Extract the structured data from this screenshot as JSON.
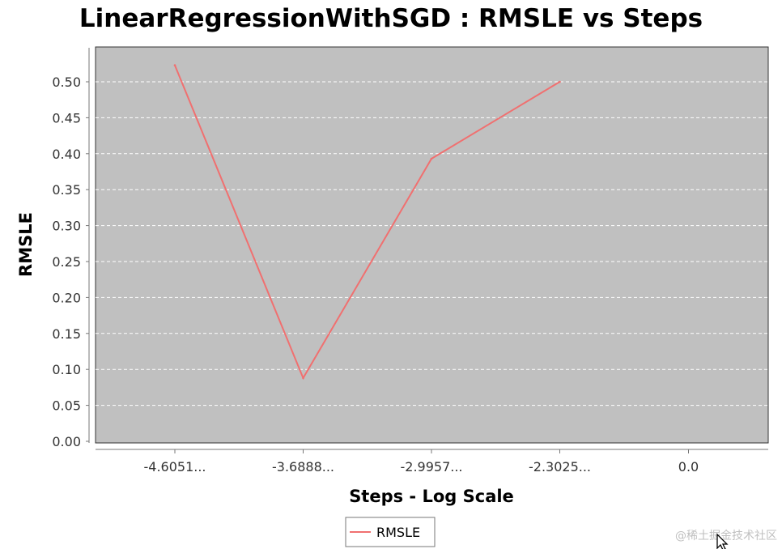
{
  "chart_data": {
    "type": "line",
    "title": "LinearRegressionWithSGD : RMSLE vs Steps",
    "xlabel": "Steps - Log Scale",
    "ylabel": "RMSLE",
    "categories": [
      "-4.6051...",
      "-3.6888...",
      "-2.9957...",
      "-2.3025...",
      "0.0"
    ],
    "series": [
      {
        "name": "RMSLE",
        "color": "#f07070",
        "values": [
          0.523,
          0.088,
          0.393,
          0.5,
          null
        ]
      }
    ],
    "ylim": [
      0,
      0.55
    ],
    "y_ticks": [
      "0.00",
      "0.05",
      "0.10",
      "0.15",
      "0.20",
      "0.25",
      "0.30",
      "0.35",
      "0.40",
      "0.45",
      "0.50"
    ],
    "y_tick_values": [
      0,
      0.05,
      0.1,
      0.15,
      0.2,
      0.25,
      0.3,
      0.35,
      0.4,
      0.45,
      0.5
    ],
    "grid": true,
    "plot_background": "#c0c0c0",
    "legend_position": "bottom-center"
  },
  "watermark": "@稀土掘金技术社区",
  "cursor_icon": "mouse-cursor-icon"
}
